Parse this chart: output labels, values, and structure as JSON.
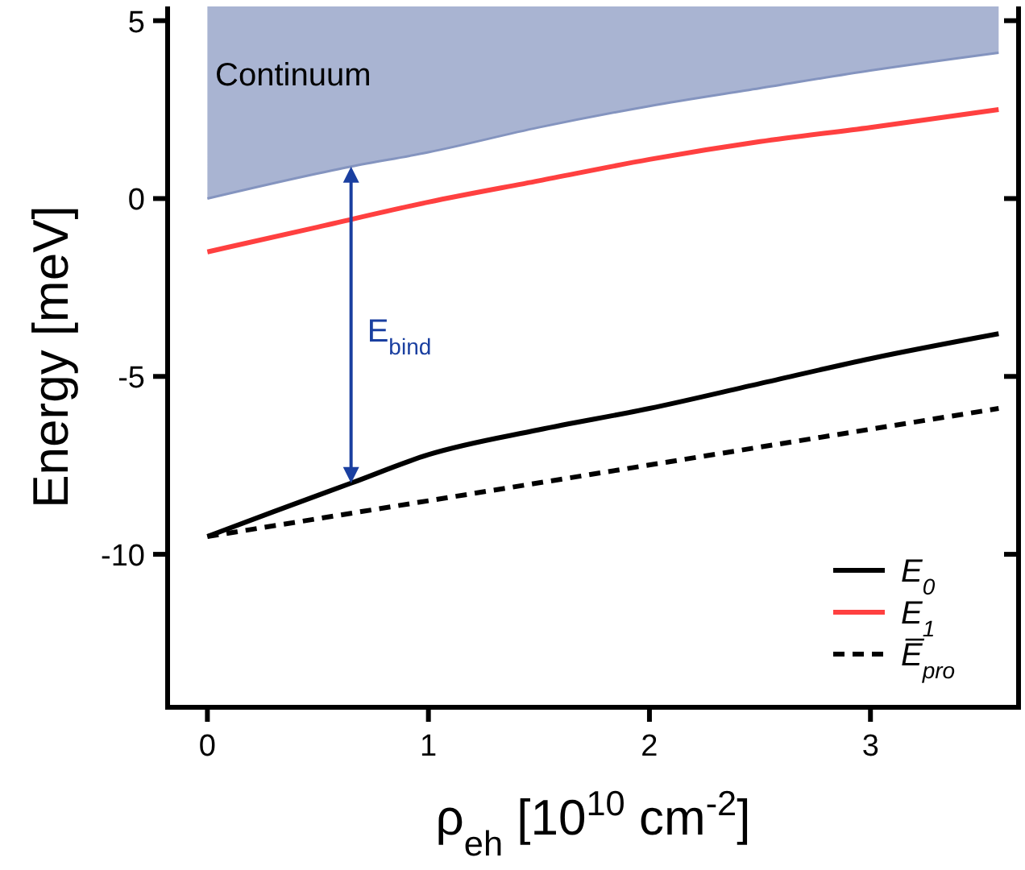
{
  "chart_data": {
    "type": "line",
    "xlabel": "ρ$_{eh}$ [10$^{10}$ cm$^{-2}$]",
    "ylabel": "Energy [meV]",
    "xlim": [
      -0.18,
      3.67
    ],
    "ylim": [
      -14.3,
      5.4
    ],
    "xticks": [
      0,
      1,
      2,
      3
    ],
    "yticks": [
      5,
      0,
      -5,
      -10
    ],
    "grid": false,
    "legend": "bottom right",
    "marker": "none",
    "series": [
      {
        "type": "line",
        "color": "#8494bf",
        "x": [
          0,
          0.65,
          1,
          1.5,
          2,
          2.5,
          3,
          3.58
        ],
        "values": [
          0,
          0.9,
          1.3,
          2.0,
          2.6,
          3.1,
          3.6,
          4.1
        ],
        "lower": [
          0,
          0.9,
          1.3,
          2.0,
          2.6,
          3.1,
          3.6,
          4.1
        ],
        "upper": [
          5.4,
          5.4,
          5.4,
          5.4,
          5.4,
          5.4,
          5.4,
          5.4
        ]
      },
      {
        "name": "E$_{0}$",
        "color": "#000000",
        "line_style": "solid",
        "x": [
          0,
          0.3,
          0.65,
          1,
          1.5,
          2,
          2.5,
          3,
          3.58
        ],
        "values": [
          -9.5,
          -8.8,
          -8.0,
          -7.2,
          -6.5,
          -5.9,
          -5.2,
          -4.5,
          -3.8
        ]
      },
      {
        "name": "E$_{1}$",
        "color": "#ff4040",
        "line_style": "solid",
        "x": [
          0,
          0.5,
          1,
          1.5,
          2,
          2.5,
          3,
          3.58
        ],
        "values": [
          -1.5,
          -0.8,
          -0.1,
          0.5,
          1.1,
          1.6,
          2.0,
          2.5
        ]
      },
      {
        "name": "E̅$_{pro}$",
        "color": "#000000",
        "line_style": "dashed",
        "x": [
          0,
          3.58
        ],
        "values": [
          -9.5,
          -5.9
        ]
      }
    ],
    "annotations": [
      "Continuum",
      "E$_{bind}$"
    ]
  }
}
